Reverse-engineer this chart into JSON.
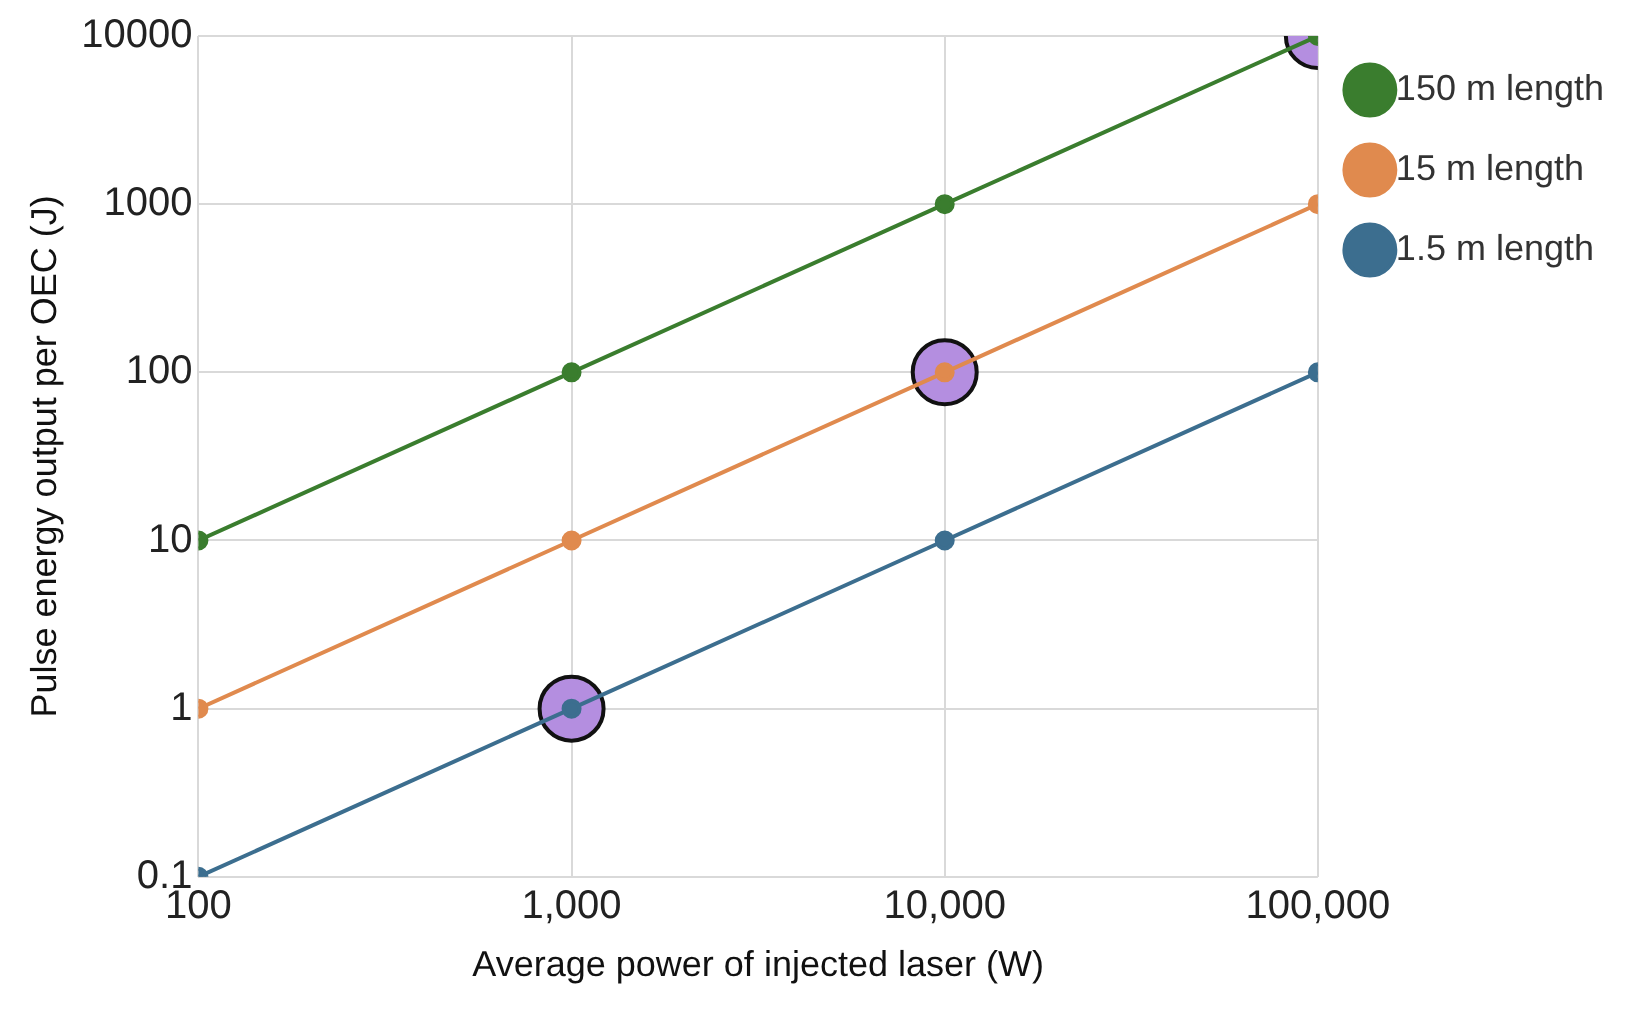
{
  "chart_data": {
    "type": "line",
    "xlabel": "Average power of injected laser (W)",
    "ylabel": "Pulse energy output per OEC (J)",
    "x": [
      100,
      1000,
      10000,
      100000
    ],
    "series": [
      {
        "name": "150 m length",
        "color": "#3a7d2e",
        "values": [
          10,
          100,
          1000,
          10000
        ]
      },
      {
        "name": "15 m length",
        "color": "#e08a4e",
        "values": [
          1,
          10,
          100,
          1000
        ]
      },
      {
        "name": "1.5 m length",
        "color": "#3c6e8f",
        "values": [
          0.1,
          1,
          10,
          100
        ]
      },
      {
        "type": "scatter",
        "color": "#b48ee0",
        "x": [
          1000,
          10000,
          100000
        ],
        "values": [
          1,
          100,
          10000
        ]
      }
    ],
    "log": "xy",
    "xlim": [
      100,
      100000
    ],
    "ylim": [
      0.1,
      10000
    ],
    "xticks": [
      100,
      {
        "value": 1000,
        "label": "1,000"
      },
      {
        "value": 10000,
        "label": "10,000"
      },
      {
        "value": 100000,
        "label": "100,000"
      }
    ],
    "yticks": [
      0.1,
      1,
      10,
      100,
      1000,
      10000
    ],
    "grid": true,
    "legend": "right",
    "marker": "circle",
    "line_style": "solid"
  }
}
